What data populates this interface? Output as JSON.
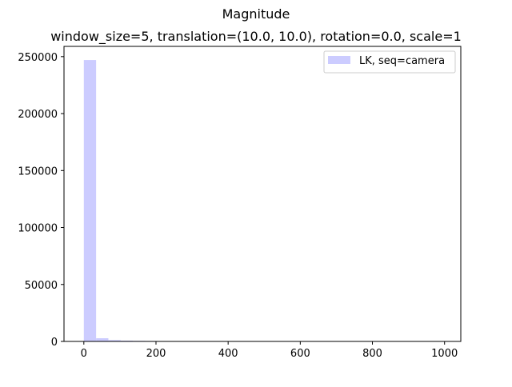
{
  "chart_data": {
    "type": "bar",
    "title": "Magnitude",
    "subtitle": "window_size=5, translation=(10.0, 10.0), rotation=0.0, scale=1",
    "xlabel": "",
    "ylabel": "",
    "xlim": [
      -55,
      1045
    ],
    "ylim": [
      0,
      259000
    ],
    "x_ticks": [
      0,
      200,
      400,
      600,
      800,
      1000
    ],
    "y_ticks": [
      0,
      50000,
      100000,
      150000,
      200000,
      250000
    ],
    "grid": false,
    "legend_position": "upper right",
    "bar_color": "#ccccff",
    "series": [
      {
        "name": "LK, seq=camera",
        "bins": [
          {
            "x0": 0,
            "x1": 34,
            "value": 247000
          },
          {
            "x0": 34,
            "x1": 68,
            "value": 2800
          },
          {
            "x0": 68,
            "x1": 102,
            "value": 1200
          },
          {
            "x0": 102,
            "x1": 136,
            "value": 700
          },
          {
            "x0": 136,
            "x1": 170,
            "value": 500
          },
          {
            "x0": 170,
            "x1": 204,
            "value": 400
          },
          {
            "x0": 204,
            "x1": 238,
            "value": 350
          },
          {
            "x0": 238,
            "x1": 272,
            "value": 320
          },
          {
            "x0": 272,
            "x1": 306,
            "value": 300
          },
          {
            "x0": 306,
            "x1": 340,
            "value": 280
          },
          {
            "x0": 340,
            "x1": 374,
            "value": 200
          }
        ]
      }
    ]
  }
}
